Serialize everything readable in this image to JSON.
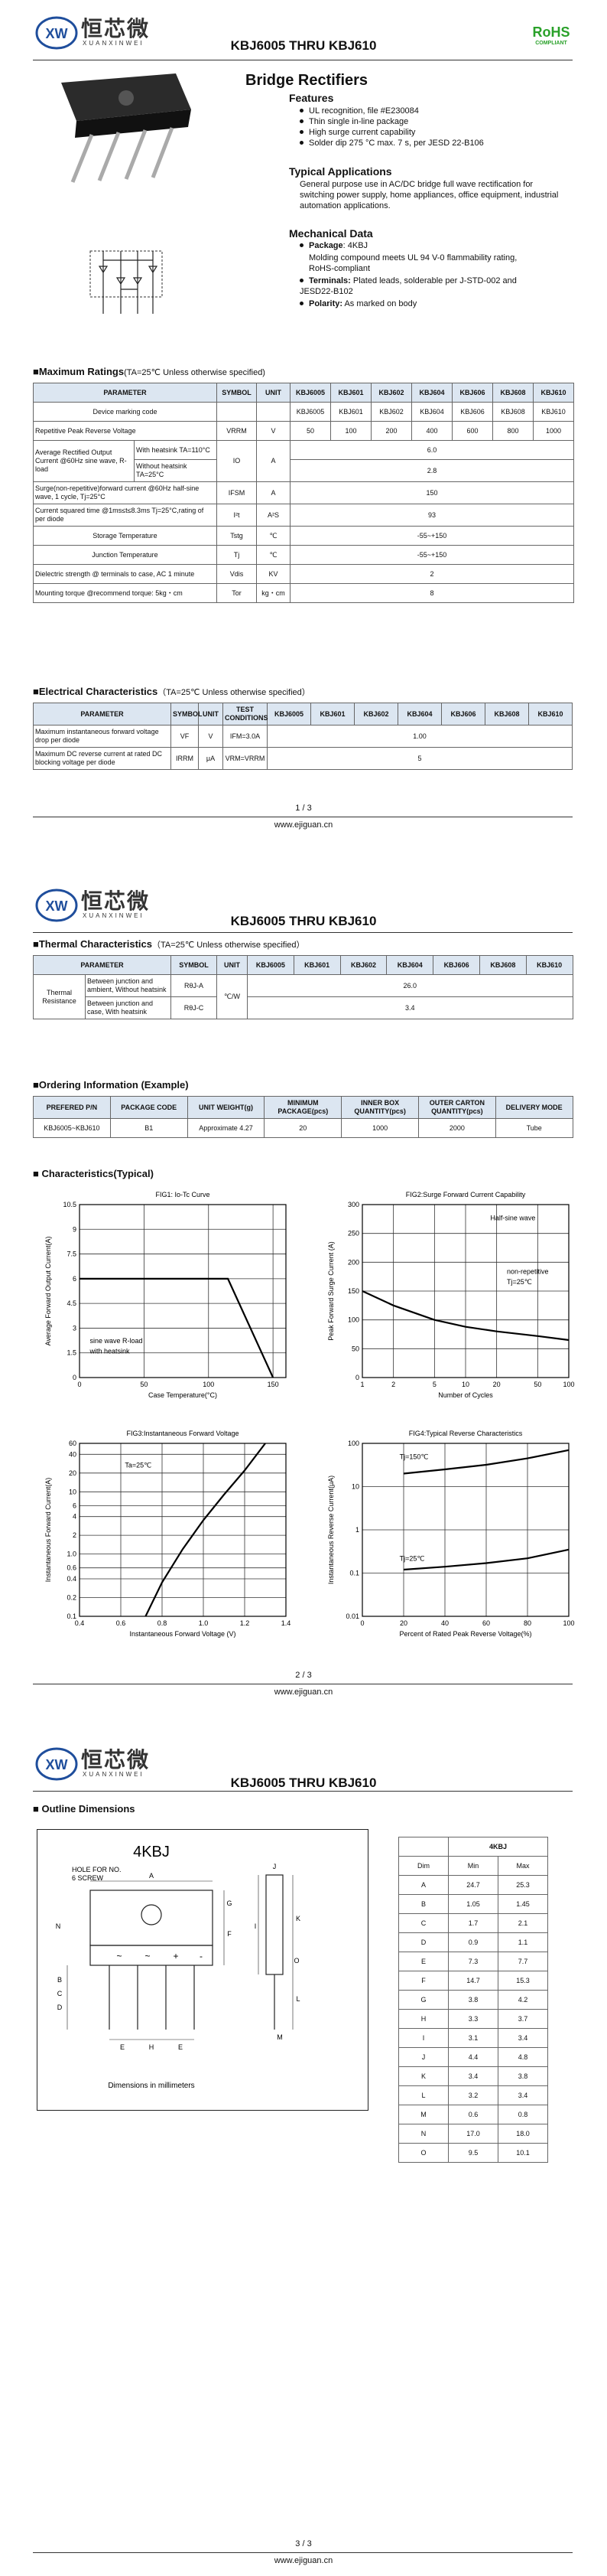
{
  "pages": [
    {
      "header": {
        "logo_mark": "XW",
        "logo_cn": "恒芯微",
        "logo_en": "XUANXINWEI",
        "title": "KBJ6005 THRU KBJ610"
      },
      "footer": {
        "page": "1 / 3",
        "site": "www.ejiguan.cn"
      }
    },
    {
      "header": {
        "logo_mark": "XW",
        "logo_cn": "恒芯微",
        "logo_en": "XUANXINWEI",
        "title": "KBJ6005 THRU KBJ610"
      },
      "footer": {
        "page": "2 / 3",
        "site": "www.ejiguan.cn"
      }
    },
    {
      "header": {
        "logo_mark": "XW",
        "logo_cn": "恒芯微",
        "logo_en": "XUANXINWEI",
        "title": "KBJ6005 THRU KBJ610"
      },
      "footer": {
        "page": "3 / 3",
        "site": "www.ejiguan.cn"
      }
    }
  ],
  "rohs": {
    "title": "RoHS",
    "subtitle": "COMPLIANT"
  },
  "product": {
    "name": "Bridge Rectifiers",
    "features": {
      "title": "Features",
      "items": [
        "UL recognition, file #E230084",
        "Thin single in-line package",
        "High surge current capability",
        "Solder dip 275 °C max. 7 s, per JESD 22-B106"
      ]
    },
    "applications": {
      "title": "Typical  Applications",
      "text": "General purpose use in AC/DC bridge full wave rectification for switching power supply, home appliances, office equipment, industrial automation applications."
    },
    "mechanical": {
      "title": "Mechanical Data",
      "items": [
        {
          "label": "Package",
          "text": ": 4KBJ"
        },
        {
          "text": "Molding compound meets UL 94 V-0 flammability rating, RoHS-compliant"
        },
        {
          "label": "Terminals:",
          "text": " Plated leads, solderable per J-STD-002 and JESD22-B102"
        },
        {
          "label": "Polarity:",
          "text": " As marked on body"
        }
      ]
    }
  },
  "max_ratings": {
    "title": "■Maximum Ratings",
    "condition": "(TA=25℃ Unless otherwise specified)",
    "rows": [
      [
        {
          "text": "PARAMETER",
          "colspan": 2
        },
        "SYMBOL",
        "UNIT",
        "KBJ6005",
        "KBJ601",
        "KBJ602",
        "KBJ604",
        "KBJ606",
        "KBJ608",
        "KBJ610"
      ],
      [
        {
          "text": "Device marking code",
          "colspan": 2
        },
        null,
        null,
        "KBJ6005",
        "KBJ601",
        "KBJ602",
        "KBJ604",
        "KBJ606",
        "KBJ608",
        "KBJ610"
      ],
      [
        {
          "text": "Repetitive Peak Reverse Voltage",
          "colspan": 2
        },
        "VRRM",
        "V",
        "50",
        "100",
        "200",
        "400",
        "600",
        "800",
        "1000"
      ],
      [
        {
          "text": "Average Rectified Output Current @60Hz sine wave, R-load",
          "rowspan": 2
        },
        "With heatsink TA=110°C",
        {
          "text": "IO",
          "rowspan": 2
        },
        {
          "text": "A",
          "rowspan": 2
        },
        {
          "text": "6.0",
          "colspan": 7
        }
      ],
      [
        "Without heatsink TA=25°C",
        {
          "text": "2.8",
          "colspan": 7
        }
      ],
      [
        {
          "text": "Surge(non-repetitive)forward current @60Hz half-sine wave, 1 cycle, Tj=25°C",
          "colspan": 2
        },
        "IFSM",
        "A",
        {
          "text": "150",
          "colspan": 7
        }
      ],
      [
        {
          "text": "Current squared time @1ms≤t≤8.3ms Tj=25°C,rating of per diode",
          "colspan": 2
        },
        "I²t",
        "A²S",
        {
          "text": "93",
          "colspan": 7
        }
      ],
      [
        {
          "text": "Storage Temperature",
          "colspan": 2
        },
        "Tstg",
        "℃",
        {
          "text": "-55~+150",
          "colspan": 7
        }
      ],
      [
        {
          "text": "Junction Temperature",
          "colspan": 2
        },
        "Tj",
        "℃",
        {
          "text": "-55~+150",
          "colspan": 7
        }
      ],
      [
        {
          "text": "Dielectric strength @ terminals to case, AC 1 minute",
          "colspan": 2
        },
        "Vdis",
        "KV",
        {
          "text": "2",
          "colspan": 7
        }
      ],
      [
        {
          "text": "Mounting torque @recommend torque: 5kg・cm",
          "colspan": 2
        },
        "Tor",
        "kg・cm",
        {
          "text": "8",
          "colspan": 7
        }
      ]
    ]
  },
  "electrical": {
    "title": "■Electrical Characteristics",
    "condition": "（TA=25℃ Unless otherwise specified）",
    "rows": [
      [
        "PARAMETER",
        "SYMBOL",
        "UNIT",
        "TEST CONDITIONS",
        "KBJ6005",
        "KBJ601",
        "KBJ602",
        "KBJ604",
        "KBJ606",
        "KBJ608",
        "KBJ610"
      ],
      [
        "Maximum instantaneous forward voltage drop per diode",
        "VF",
        "V",
        "IFM=3.0A",
        {
          "text": "1.00",
          "colspan": 7
        }
      ],
      [
        "Maximum DC reverse current at rated DC blocking voltage per diode",
        "IRRM",
        "μA",
        "VRM=VRRM",
        {
          "text": "5",
          "colspan": 7
        }
      ]
    ]
  },
  "thermal": {
    "title": "■Thermal Characteristics",
    "condition": "（TA=25℃ Unless otherwise specified）",
    "rows": [
      [
        {
          "text": "PARAMETER",
          "colspan": 2
        },
        "SYMBOL",
        "UNIT",
        "KBJ6005",
        "KBJ601",
        "KBJ602",
        "KBJ604",
        "KBJ606",
        "KBJ608",
        "KBJ610"
      ],
      [
        {
          "text": "Thermal Resistance",
          "rowspan": 2
        },
        "Between junction and ambient, Without heatsink",
        "RθJ-A",
        {
          "text": "℃/W",
          "rowspan": 2
        },
        {
          "text": "26.0",
          "colspan": 7
        }
      ],
      [
        "Between junction and case, With heatsink",
        "RθJ-C",
        {
          "text": "3.4",
          "colspan": 7
        }
      ]
    ]
  },
  "ordering": {
    "title": "■Ordering Information (Example)",
    "rows": [
      [
        "PREFERED P/N",
        "PACKAGE CODE",
        "UNIT WEIGHT(g)",
        "MINIMUM PACKAGE(pcs)",
        "INNER BOX QUANTITY(pcs)",
        "OUTER CARTON QUANTITY(pcs)",
        "DELIVERY MODE"
      ],
      [
        "KBJ6005~KBJ610",
        "B1",
        "Approximate 4.27",
        "20",
        "1000",
        "2000",
        "Tube"
      ]
    ]
  },
  "characteristics": {
    "title": "■ Characteristics(Typical)",
    "charts": [
      {
        "type": "line",
        "title": "FIG1: Io-Tc Curve",
        "xlabel": "Case Temperature(°C)",
        "ylabel": "Average Forward Output Current(A)",
        "xlim": [
          0,
          160
        ],
        "ylim": [
          0,
          10.5
        ],
        "xticks": [
          0,
          50,
          100,
          150
        ],
        "yticks": [
          0,
          1.5,
          3,
          4.5,
          6,
          7.5,
          9,
          10.5
        ],
        "grid": true,
        "x": [
          0,
          50,
          100,
          115,
          150
        ],
        "series": [
          {
            "color": "#000000",
            "values": [
              6,
              6,
              6,
              6,
              0
            ]
          }
        ],
        "annotations": [
          "sine wave R-load",
          "with heatsink"
        ]
      },
      {
        "type": "line",
        "title": "FIG2:Surge Forward Current Capability",
        "xlabel": "Number of Cycles",
        "ylabel": "Peak Forward Surge Current (A)",
        "xscale": "log",
        "xlim": [
          1,
          100
        ],
        "ylim": [
          0,
          300
        ],
        "xticks": [
          1,
          2,
          5,
          10,
          20,
          50,
          100
        ],
        "yticks": [
          0,
          50,
          100,
          150,
          200,
          250,
          300
        ],
        "grid": true,
        "x": [
          1,
          2,
          5,
          10,
          20,
          50,
          100
        ],
        "series": [
          {
            "color": "#000000",
            "values": [
              150,
              125,
              100,
              88,
              80,
              72,
              65
            ]
          }
        ],
        "annotations": [
          "Half-sine wave",
          "non-repetitive",
          "Tj=25℃"
        ]
      },
      {
        "type": "line",
        "title": "FIG3:Instantaneous Forward Voltage",
        "xlabel": "Instantaneous Forward Voltage (V)",
        "ylabel": "Instantaneous Forward Current(A)",
        "yscale": "log",
        "xlim": [
          0.4,
          1.4
        ],
        "ylim": [
          0.1,
          60
        ],
        "xticks": [
          0.4,
          0.6,
          0.8,
          {
            "value": 1,
            "label": "1.0"
          },
          1.2,
          1.4
        ],
        "yticks": [
          0.1,
          0.2,
          0.4,
          0.6,
          {
            "value": 1,
            "label": "1.0"
          },
          2,
          4,
          6,
          10,
          20,
          40,
          60
        ],
        "grid": true,
        "x": [
          0.72,
          0.8,
          0.9,
          1.0,
          1.1,
          1.2,
          1.3
        ],
        "series": [
          {
            "color": "#000000",
            "values": [
              0.1,
              0.35,
              1.2,
              3.5,
              9,
              22,
              60
            ]
          }
        ],
        "annotations": [
          "Ta=25℃"
        ]
      },
      {
        "type": "line",
        "title": "FIG4:Typical Reverse Characteristics",
        "xlabel": "Percent of Rated Peak Reverse Voltage(%)",
        "ylabel": "Instantaneous Reverse Current(μA)",
        "yscale": "log",
        "xlim": [
          0,
          100
        ],
        "ylim": [
          0.01,
          100
        ],
        "xticks": [
          0,
          20,
          40,
          60,
          80,
          100
        ],
        "yticks": [
          0.01,
          0.1,
          1,
          10,
          100
        ],
        "grid": true,
        "x": [
          20,
          40,
          60,
          80,
          100
        ],
        "series": [
          {
            "name": "Tj=150℃",
            "color": "#000000",
            "values": [
              20,
              25,
              32,
              45,
              70
            ]
          },
          {
            "name": "Tj=25℃",
            "color": "#000000",
            "values": [
              0.12,
              0.14,
              0.17,
              0.22,
              0.35
            ]
          }
        ],
        "annotations": []
      }
    ]
  },
  "outline": {
    "title": "■ Outline Dimensions",
    "drawing": {
      "package": "4KBJ",
      "hole_note": [
        "HOLE FOR NO.",
        "6 SCREW"
      ],
      "pin_marks": [
        "~",
        "~",
        "+",
        "-"
      ],
      "labels": [
        "A",
        "J",
        "G",
        "K",
        "F",
        "I",
        "L",
        "B",
        "C",
        "D",
        "E",
        "E",
        "H",
        "M",
        "N",
        "O"
      ],
      "note": "Dimensions in millimeters"
    },
    "table": {
      "rows": [
        [
          null,
          {
            "text": "4KBJ",
            "colspan": 2
          }
        ],
        [
          "Dim",
          "Min",
          "Max"
        ],
        [
          "A",
          "24.7",
          "25.3"
        ],
        [
          "B",
          "1.05",
          "1.45"
        ],
        [
          "C",
          "1.7",
          "2.1"
        ],
        [
          "D",
          "0.9",
          "1.1"
        ],
        [
          "E",
          "7.3",
          "7.7"
        ],
        [
          "F",
          "14.7",
          "15.3"
        ],
        [
          "G",
          "3.8",
          "4.2"
        ],
        [
          "H",
          "3.3",
          "3.7"
        ],
        [
          "I",
          "3.1",
          "3.4"
        ],
        [
          "J",
          "4.4",
          "4.8"
        ],
        [
          "K",
          "3.4",
          "3.8"
        ],
        [
          "L",
          "3.2",
          "3.4"
        ],
        [
          "M",
          "0.6",
          "0.8"
        ],
        [
          "N",
          "17.0",
          "18.0"
        ],
        [
          "O",
          "9.5",
          "10.1"
        ]
      ]
    }
  }
}
